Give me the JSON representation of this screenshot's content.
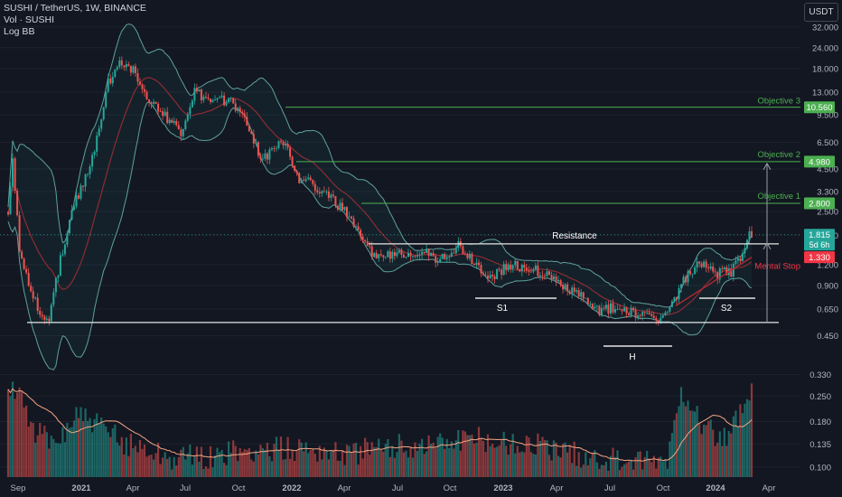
{
  "header": {
    "line1": "SUSHI / TetherUS, 1W, BINANCE",
    "line2": "Vol · SUSHI",
    "line3": "Log BB"
  },
  "currency_button": "USDT",
  "colors": {
    "background": "#131722",
    "up": "#26a69a",
    "down": "#ef5350",
    "band": "#5ea19c",
    "level_green": "#4caf50",
    "white": "#e6e6e6",
    "stop": "#f23645",
    "sma_vol": "#f4a582"
  },
  "chart_data": {
    "type": "candlestick",
    "scale": "log",
    "y_ticks": [
      "32.000",
      "24.000",
      "18.000",
      "13.000",
      "9.500",
      "6.500",
      "4.500",
      "3.300",
      "2.500",
      "1.800",
      "1.200",
      "0.900",
      "0.650",
      "0.450"
    ],
    "x_ticks": [
      "Sep",
      "2021",
      "Apr",
      "Jul",
      "Oct",
      "2022",
      "Apr",
      "Jul",
      "Oct",
      "2023",
      "Apr",
      "Jul",
      "Oct",
      "2024",
      "Apr"
    ],
    "volume_ticks": [
      "0.330",
      "0.250",
      "0.180",
      "0.135",
      "0.100"
    ],
    "price_labels": [
      {
        "text": "10.560",
        "value": 10.56,
        "color": "#4caf50"
      },
      {
        "text": "4.980",
        "value": 4.98,
        "color": "#4caf50"
      },
      {
        "text": "2.800",
        "value": 2.8,
        "color": "#4caf50"
      },
      {
        "text": "1.815",
        "value": 1.815,
        "color": "#26a69a",
        "extra": "5d 6h"
      },
      {
        "text": "1.330",
        "value": 1.33,
        "color": "#f23645"
      }
    ],
    "annotations": {
      "objective3": "Objective 3",
      "objective2": "Objective 2",
      "objective1": "Objective 1",
      "resistance": "Resistance",
      "mental_stop": "Mental Stop",
      "s1": "S1",
      "h": "H",
      "s2": "S2"
    },
    "levels": {
      "objective3": 10.56,
      "objective2": 4.98,
      "objective1": 2.8,
      "resistance": 1.6,
      "support": 0.54,
      "stop": 1.33
    },
    "anchors": [
      {
        "i": 0,
        "p": 2.4
      },
      {
        "i": 2,
        "p": 5.5
      },
      {
        "i": 5,
        "p": 1.4
      },
      {
        "i": 9,
        "p": 0.9
      },
      {
        "i": 14,
        "p": 0.62
      },
      {
        "i": 18,
        "p": 0.58
      },
      {
        "i": 24,
        "p": 1.5
      },
      {
        "i": 30,
        "p": 3.0
      },
      {
        "i": 36,
        "p": 4.5
      },
      {
        "i": 44,
        "p": 15
      },
      {
        "i": 50,
        "p": 20
      },
      {
        "i": 56,
        "p": 17
      },
      {
        "i": 62,
        "p": 12
      },
      {
        "i": 68,
        "p": 9.5
      },
      {
        "i": 76,
        "p": 7.5
      },
      {
        "i": 82,
        "p": 13
      },
      {
        "i": 90,
        "p": 11
      },
      {
        "i": 98,
        "p": 12
      },
      {
        "i": 106,
        "p": 8
      },
      {
        "i": 112,
        "p": 5
      },
      {
        "i": 120,
        "p": 7
      },
      {
        "i": 128,
        "p": 4
      },
      {
        "i": 136,
        "p": 3.5
      },
      {
        "i": 142,
        "p": 3
      },
      {
        "i": 150,
        "p": 2.3
      },
      {
        "i": 156,
        "p": 1.6
      },
      {
        "i": 164,
        "p": 1.3
      },
      {
        "i": 170,
        "p": 1.4
      },
      {
        "i": 180,
        "p": 1.45
      },
      {
        "i": 190,
        "p": 1.3
      },
      {
        "i": 198,
        "p": 1.55
      },
      {
        "i": 206,
        "p": 1.2
      },
      {
        "i": 212,
        "p": 1.0
      },
      {
        "i": 220,
        "p": 1.2
      },
      {
        "i": 228,
        "p": 1.15
      },
      {
        "i": 236,
        "p": 1.05
      },
      {
        "i": 244,
        "p": 0.9
      },
      {
        "i": 252,
        "p": 0.78
      },
      {
        "i": 258,
        "p": 0.62
      },
      {
        "i": 264,
        "p": 0.66
      },
      {
        "i": 272,
        "p": 0.65
      },
      {
        "i": 280,
        "p": 0.58
      },
      {
        "i": 288,
        "p": 0.58
      },
      {
        "i": 292,
        "p": 0.7
      },
      {
        "i": 298,
        "p": 1.0
      },
      {
        "i": 304,
        "p": 1.2
      },
      {
        "i": 312,
        "p": 1.05
      },
      {
        "i": 318,
        "p": 1.1
      },
      {
        "i": 322,
        "p": 1.35
      },
      {
        "i": 326,
        "p": 1.85
      }
    ],
    "volume_anchors": [
      {
        "i": 0,
        "v": 0.24
      },
      {
        "i": 4,
        "v": 0.3
      },
      {
        "i": 10,
        "v": 0.17
      },
      {
        "i": 20,
        "v": 0.13
      },
      {
        "i": 30,
        "v": 0.2
      },
      {
        "i": 40,
        "v": 0.17
      },
      {
        "i": 50,
        "v": 0.14
      },
      {
        "i": 60,
        "v": 0.13
      },
      {
        "i": 70,
        "v": 0.115
      },
      {
        "i": 90,
        "v": 0.115
      },
      {
        "i": 110,
        "v": 0.125
      },
      {
        "i": 130,
        "v": 0.13
      },
      {
        "i": 150,
        "v": 0.12
      },
      {
        "i": 170,
        "v": 0.13
      },
      {
        "i": 200,
        "v": 0.145
      },
      {
        "i": 220,
        "v": 0.14
      },
      {
        "i": 240,
        "v": 0.125
      },
      {
        "i": 260,
        "v": 0.11
      },
      {
        "i": 280,
        "v": 0.105
      },
      {
        "i": 290,
        "v": 0.11
      },
      {
        "i": 296,
        "v": 0.27
      },
      {
        "i": 300,
        "v": 0.24
      },
      {
        "i": 306,
        "v": 0.17
      },
      {
        "i": 316,
        "v": 0.14
      },
      {
        "i": 322,
        "v": 0.2
      },
      {
        "i": 326,
        "v": 0.25
      }
    ]
  }
}
